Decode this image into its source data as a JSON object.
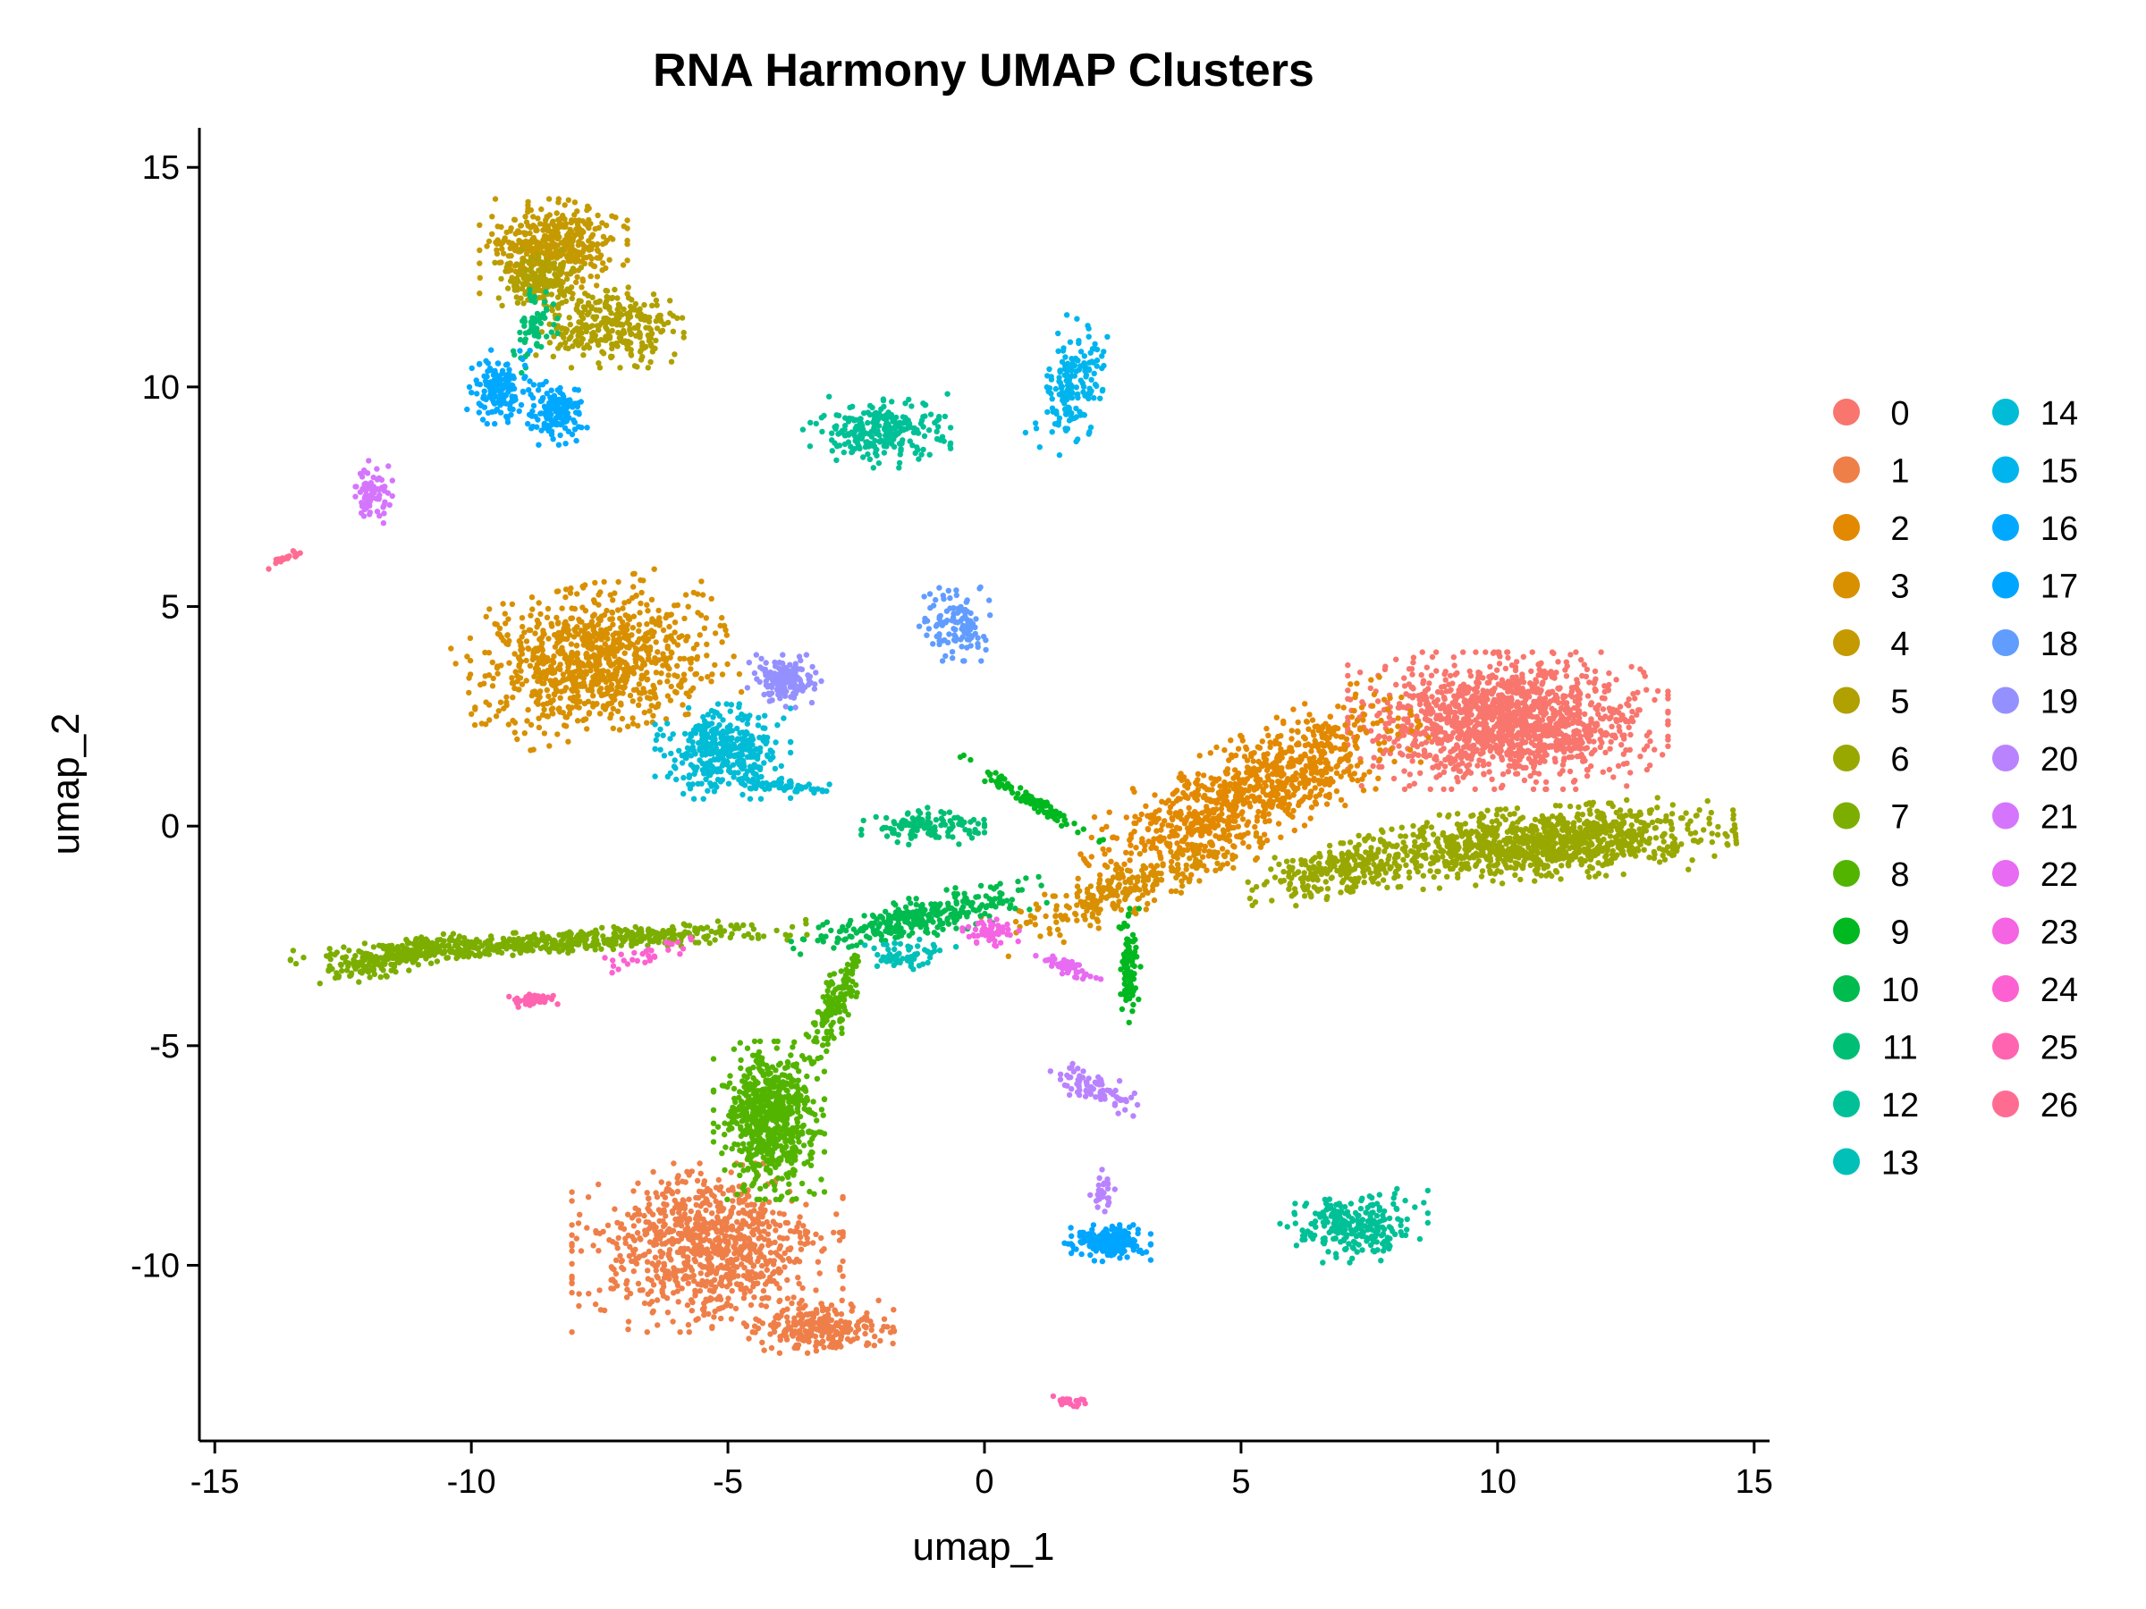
{
  "chart_data": {
    "type": "scatter",
    "title": "RNA Harmony UMAP Clusters",
    "xlabel": "umap_1",
    "ylabel": "umap_2",
    "xlim": [
      -15.3,
      15.3
    ],
    "ylim": [
      -14.0,
      15.9
    ],
    "x_ticks": [
      -15,
      -10,
      -5,
      0,
      5,
      10,
      15
    ],
    "y_ticks": [
      -10,
      -5,
      0,
      5,
      10,
      15
    ],
    "x_tick_labels": [
      "-15",
      "-10",
      "-5",
      "0",
      "5",
      "10",
      "15"
    ],
    "y_tick_labels": [
      "-10",
      "-5",
      "0",
      "5",
      "10",
      "15"
    ],
    "grid": false,
    "legend_position": "right",
    "legend_columns": 2,
    "series": [
      {
        "name": "0",
        "color": "#F8766D",
        "clusters": [
          {
            "cx": 10.2,
            "cy": 2.4,
            "rx": 2.6,
            "ry": 1.3,
            "n": 1400
          }
        ]
      },
      {
        "name": "1",
        "color": "#EF7F49",
        "clusters": [
          {
            "cx": -5.4,
            "cy": -9.6,
            "rx": 2.2,
            "ry": 1.6,
            "n": 900
          },
          {
            "cx": -3.2,
            "cy": -11.4,
            "rx": 1.2,
            "ry": 0.5,
            "n": 250
          }
        ]
      },
      {
        "name": "2",
        "color": "#E38900",
        "clusters": [
          {
            "cx": 5.2,
            "cy": 0.8,
            "rx": 3.0,
            "ry": 1.0,
            "rot": 30,
            "n": 900
          }
        ]
      },
      {
        "name": "3",
        "color": "#D89000",
        "clusters": [
          {
            "cx": -7.6,
            "cy": 3.8,
            "rx": 2.2,
            "ry": 1.4,
            "rot": 15,
            "n": 900
          },
          {
            "cx": 2.8,
            "cy": -1.4,
            "rx": 2.4,
            "ry": 0.5,
            "rot": 25,
            "n": 250
          }
        ]
      },
      {
        "name": "4",
        "color": "#C49A00",
        "clusters": [
          {
            "cx": -8.4,
            "cy": 13.2,
            "rx": 1.2,
            "ry": 0.9,
            "n": 400
          }
        ]
      },
      {
        "name": "5",
        "color": "#B0A000",
        "clusters": [
          {
            "cx": -7.3,
            "cy": 11.4,
            "rx": 1.2,
            "ry": 0.8,
            "n": 300
          },
          {
            "cx": -8.7,
            "cy": 12.4,
            "rx": 0.7,
            "ry": 0.6,
            "n": 150
          }
        ]
      },
      {
        "name": "6",
        "color": "#99A800",
        "clusters": [
          {
            "cx": 10.8,
            "cy": -0.4,
            "rx": 3.2,
            "ry": 0.7,
            "rot": 5,
            "n": 1000
          },
          {
            "cx": 7.0,
            "cy": -1.0,
            "rx": 1.6,
            "ry": 0.5,
            "rot": 12,
            "n": 250
          }
        ]
      },
      {
        "name": "7",
        "color": "#7CAE00",
        "clusters": [
          {
            "cx": -8.5,
            "cy": -2.65,
            "rx": 4.2,
            "ry": 0.22,
            "rot": 4,
            "n": 500
          },
          {
            "cx": -11.5,
            "cy": -3.0,
            "rx": 1.3,
            "ry": 0.3,
            "rot": 18,
            "n": 200
          }
        ]
      },
      {
        "name": "8",
        "color": "#53B400",
        "clusters": [
          {
            "cx": -4.2,
            "cy": -6.7,
            "rx": 0.9,
            "ry": 1.5,
            "n": 700
          },
          {
            "cx": -2.9,
            "cy": -4.0,
            "rx": 0.3,
            "ry": 1.2,
            "rot": -20,
            "n": 150
          }
        ]
      },
      {
        "name": "9",
        "color": "#00B81F",
        "clusters": [
          {
            "cx": 0.9,
            "cy": 0.6,
            "rx": 1.4,
            "ry": 0.14,
            "rot": -35,
            "n": 100
          },
          {
            "cx": 2.8,
            "cy": -3.2,
            "rx": 0.2,
            "ry": 1.1,
            "n": 90
          }
        ]
      },
      {
        "name": "10",
        "color": "#00BB4E",
        "clusters": [
          {
            "cx": -1.3,
            "cy": -2.1,
            "rx": 2.1,
            "ry": 0.4,
            "rot": 15,
            "n": 300
          }
        ]
      },
      {
        "name": "11",
        "color": "#00BF74",
        "clusters": [
          {
            "cx": -1.2,
            "cy": 0.0,
            "rx": 1.0,
            "ry": 0.35,
            "n": 120
          },
          {
            "cx": -8.8,
            "cy": 11.4,
            "rx": 0.4,
            "ry": 0.9,
            "n": 60
          }
        ]
      },
      {
        "name": "12",
        "color": "#00C097",
        "clusters": [
          {
            "cx": 7.2,
            "cy": -9.1,
            "rx": 1.2,
            "ry": 0.7,
            "n": 250
          },
          {
            "cx": -2.1,
            "cy": 9.0,
            "rx": 1.2,
            "ry": 0.7,
            "n": 250
          }
        ]
      },
      {
        "name": "13",
        "color": "#00C0B8",
        "clusters": [
          {
            "cx": -1.5,
            "cy": -2.9,
            "rx": 0.8,
            "ry": 0.3,
            "n": 60
          }
        ]
      },
      {
        "name": "14",
        "color": "#00BCD6",
        "clusters": [
          {
            "cx": -5.1,
            "cy": 1.7,
            "rx": 1.1,
            "ry": 0.9,
            "n": 350
          },
          {
            "cx": -3.9,
            "cy": 0.9,
            "rx": 1.1,
            "ry": 0.12,
            "rot": -5,
            "n": 60
          }
        ]
      },
      {
        "name": "15",
        "color": "#00B5EE",
        "clusters": [
          {
            "cx": 1.7,
            "cy": 10.0,
            "rx": 0.5,
            "ry": 1.3,
            "rot": -15,
            "n": 180
          }
        ]
      },
      {
        "name": "16",
        "color": "#00A9FF",
        "clusters": [
          {
            "cx": -9.4,
            "cy": 10.0,
            "rx": 0.6,
            "ry": 0.7,
            "n": 150
          },
          {
            "cx": -8.3,
            "cy": 9.4,
            "rx": 0.5,
            "ry": 0.6,
            "n": 150
          }
        ]
      },
      {
        "name": "17",
        "color": "#00A5FF",
        "clusters": [
          {
            "cx": 2.4,
            "cy": -9.5,
            "rx": 0.7,
            "ry": 0.35,
            "n": 200
          }
        ]
      },
      {
        "name": "18",
        "color": "#619CFF",
        "clusters": [
          {
            "cx": -0.6,
            "cy": 4.6,
            "rx": 0.6,
            "ry": 0.7,
            "n": 120
          }
        ]
      },
      {
        "name": "19",
        "color": "#9590FF",
        "clusters": [
          {
            "cx": -3.9,
            "cy": 3.3,
            "rx": 0.6,
            "ry": 0.5,
            "n": 150
          }
        ]
      },
      {
        "name": "20",
        "color": "#B983FF",
        "clusters": [
          {
            "cx": 2.2,
            "cy": -6.0,
            "rx": 0.9,
            "ry": 0.35,
            "rot": -25,
            "n": 80
          },
          {
            "cx": 2.3,
            "cy": -8.3,
            "rx": 0.2,
            "ry": 0.4,
            "n": 30
          }
        ]
      },
      {
        "name": "21",
        "color": "#D575FE",
        "clusters": [
          {
            "cx": -11.9,
            "cy": 7.6,
            "rx": 0.3,
            "ry": 0.6,
            "n": 80
          }
        ]
      },
      {
        "name": "22",
        "color": "#E76BF3",
        "clusters": [
          {
            "cx": 1.6,
            "cy": -3.2,
            "rx": 0.6,
            "ry": 0.15,
            "rot": -30,
            "n": 50
          }
        ]
      },
      {
        "name": "23",
        "color": "#F564E3",
        "clusters": [
          {
            "cx": 0.1,
            "cy": -2.4,
            "rx": 0.5,
            "ry": 0.3,
            "n": 60
          }
        ]
      },
      {
        "name": "24",
        "color": "#FD61D1",
        "clusters": [
          {
            "cx": -6.7,
            "cy": -3.0,
            "rx": 1.2,
            "ry": 0.2,
            "rot": 20,
            "n": 30
          }
        ]
      },
      {
        "name": "25",
        "color": "#FF64B0",
        "clusters": [
          {
            "cx": -8.8,
            "cy": -3.95,
            "rx": 0.5,
            "ry": 0.15,
            "n": 40
          },
          {
            "cx": 1.7,
            "cy": -13.1,
            "rx": 0.3,
            "ry": 0.1,
            "n": 20
          }
        ]
      },
      {
        "name": "26",
        "color": "#FF6C91",
        "clusters": [
          {
            "cx": -13.6,
            "cy": 6.1,
            "rx": 0.35,
            "ry": 0.08,
            "rot": 25,
            "n": 20
          }
        ]
      }
    ]
  }
}
